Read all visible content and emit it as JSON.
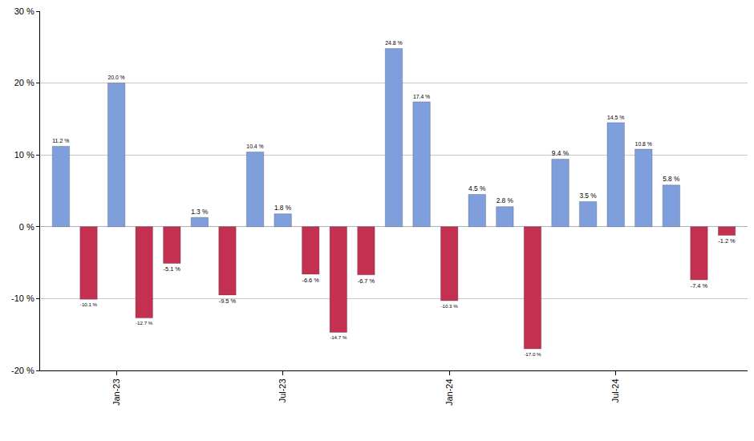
{
  "chart_data": {
    "type": "bar",
    "categories": [
      null,
      null,
      "Jan-23",
      null,
      null,
      null,
      null,
      null,
      "Jul-23",
      null,
      null,
      null,
      null,
      null,
      "Jan-24",
      null,
      null,
      null,
      null,
      null,
      "Jul-24",
      null,
      null,
      null,
      null
    ],
    "values": [
      11.2,
      -10.1,
      20.0,
      -12.7,
      -5.1,
      1.3,
      -9.5,
      10.4,
      1.8,
      -6.6,
      -14.7,
      -6.7,
      24.8,
      17.4,
      -10.3,
      4.5,
      2.8,
      -17.0,
      9.4,
      3.5,
      14.5,
      10.8,
      5.8,
      -7.4,
      -1.2
    ],
    "value_labels": [
      "11.2 %",
      "-10.1 %",
      "20.0 %",
      "-12.7 %",
      "-5.1 %",
      "1.3 %",
      "-9.5 %",
      "10.4 %",
      "1.8 %",
      "-6.6 %",
      "-14.7 %",
      "-6.7 %",
      "24.8 %",
      "17.4 %",
      "-10.3 %",
      "4.5 %",
      "2.8 %",
      "-17.0 %",
      "9.4 %",
      "3.5 %",
      "14.5 %",
      "10.8 %",
      "5.8 %",
      "-7.4 %",
      "-1.2 %"
    ],
    "colors": [
      "#7f9fdc",
      "#c4304f",
      "#7f9fdc",
      "#c4304f",
      "#c4304f",
      "#7f9fdc",
      "#c4304f",
      "#7f9fdc",
      "#7f9fdc",
      "#c4304f",
      "#c4304f",
      "#c4304f",
      "#7f9fdc",
      "#7f9fdc",
      "#c4304f",
      "#7f9fdc",
      "#7f9fdc",
      "#c4304f",
      "#7f9fdc",
      "#7f9fdc",
      "#7f9fdc",
      "#7f9fdc",
      "#7f9fdc",
      "#c4304f",
      "#c4304f"
    ],
    "ylim": [
      -20,
      30
    ],
    "yticks": [
      {
        "value": -20,
        "label": "-20 %"
      },
      {
        "value": -10,
        "label": "-10 %"
      },
      {
        "value": 0,
        "label": "0 %"
      },
      {
        "value": 10,
        "label": "10 %"
      },
      {
        "value": 20,
        "label": "20 %"
      },
      {
        "value": 30,
        "label": "30 %"
      }
    ],
    "grid": true,
    "data_labels": true
  }
}
